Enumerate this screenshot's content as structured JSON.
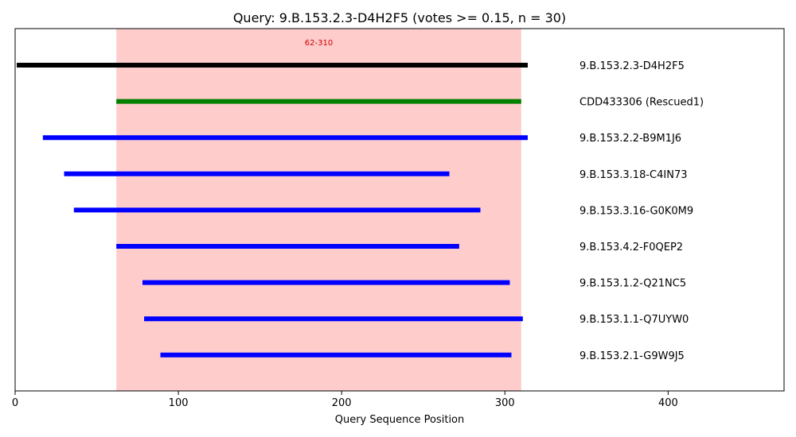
{
  "chart_data": {
    "type": "bar",
    "orientation": "horizontal-range",
    "title": "Query: 9.B.153.2.3-D4H2F5 (votes >= 0.15, n = 30)",
    "xlabel": "Query Sequence Position",
    "ylabel": "",
    "xlim": [
      0,
      471
    ],
    "xticks": [
      0,
      100,
      200,
      300,
      400
    ],
    "grid": false,
    "highlight_region": {
      "start": 62,
      "end": 310,
      "label": "62-310",
      "color": "#ff9999"
    },
    "series": [
      {
        "name": "9.B.153.2.3-D4H2F5",
        "start": 1,
        "end": 314,
        "color": "#000000"
      },
      {
        "name": "CDD433306 (Rescued1)",
        "start": 62,
        "end": 310,
        "color": "#008000"
      },
      {
        "name": "9.B.153.2.2-B9M1J6",
        "start": 17,
        "end": 314,
        "color": "#0000ff"
      },
      {
        "name": "9.B.153.3.18-C4IN73",
        "start": 30,
        "end": 266,
        "color": "#0000ff"
      },
      {
        "name": "9.B.153.3.16-G0K0M9",
        "start": 36,
        "end": 285,
        "color": "#0000ff"
      },
      {
        "name": "9.B.153.4.2-F0QEP2",
        "start": 62,
        "end": 272,
        "color": "#0000ff"
      },
      {
        "name": "9.B.153.1.2-Q21NC5",
        "start": 78,
        "end": 303,
        "color": "#0000ff"
      },
      {
        "name": "9.B.153.1.1-Q7UYW0",
        "start": 79,
        "end": 311,
        "color": "#0000ff"
      },
      {
        "name": "9.B.153.2.1-G9W9J5",
        "start": 89,
        "end": 304,
        "color": "#0000ff"
      }
    ]
  }
}
